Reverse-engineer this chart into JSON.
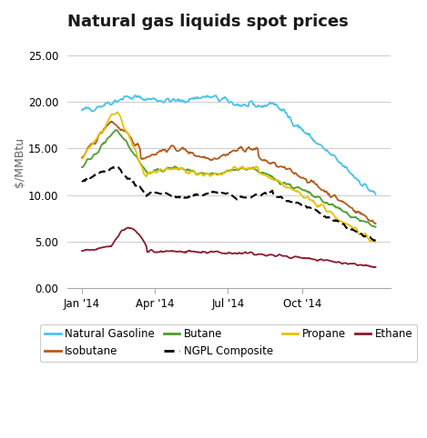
{
  "title": "Natural gas liquids spot prices",
  "ylabel": "$/MMBtu",
  "ylim": [
    0,
    27
  ],
  "yticks": [
    0.0,
    5.0,
    10.0,
    15.0,
    20.0,
    25.0
  ],
  "xtick_labels": [
    "Jan '14",
    "Apr '14",
    "Jul '14",
    "Oct '14"
  ],
  "colors": {
    "Natural Gasoline": "#4dc3e8",
    "Isobutane": "#b35a1e",
    "Butane": "#4d9e2e",
    "NGPL Composite": "#000000",
    "Propane": "#e8c200",
    "Ethane": "#8b1a2e"
  },
  "title_fontsize": 13,
  "axis_label_fontsize": 9,
  "tick_fontsize": 8.5,
  "legend_fontsize": 8.5,
  "background_color": "#ffffff",
  "grid_color": "#cccccc",
  "n_points": 365
}
